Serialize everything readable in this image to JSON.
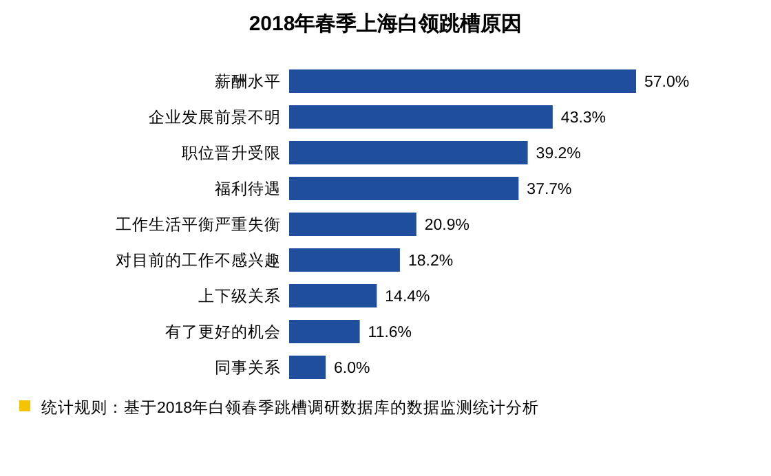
{
  "chart_data": {
    "type": "bar",
    "orientation": "horizontal",
    "title": "2018年春季上海白领跳槽原因",
    "categories": [
      "薪酬水平",
      "企业发展前景不明",
      "职位晋升受限",
      "福利待遇",
      "工作生活平衡严重失衡",
      "对目前的工作不感兴趣",
      "上下级关系",
      "有了更好的机会",
      "同事关系"
    ],
    "values": [
      57.0,
      43.3,
      39.2,
      37.7,
      20.9,
      18.2,
      14.4,
      11.6,
      6.0
    ],
    "value_labels": [
      "57.0%",
      "43.3%",
      "39.2%",
      "37.7%",
      "20.9%",
      "18.2%",
      "14.4%",
      "11.6%",
      "6.0%"
    ],
    "color": "#1f4e9c",
    "annotations": [
      "统计规则：基于2018年白领春季跳槽调研数据库的数据监测统计分析"
    ]
  }
}
